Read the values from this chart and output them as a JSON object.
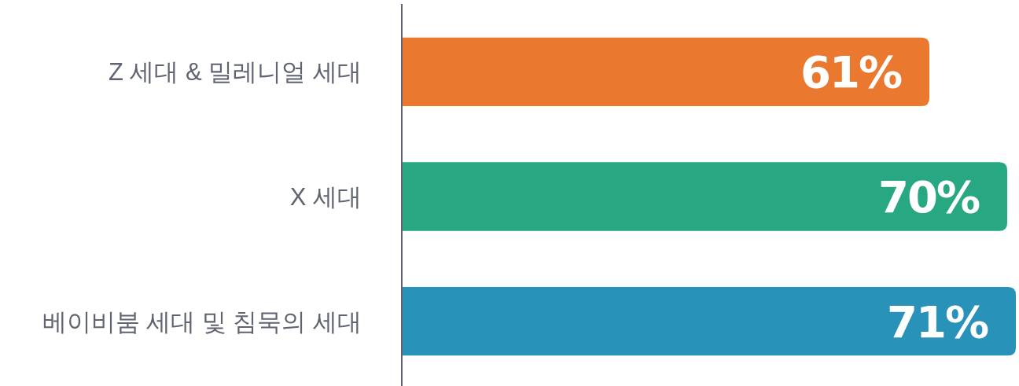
{
  "chart_data": {
    "type": "bar",
    "orientation": "horizontal",
    "categories": [
      "Z 세대 & 밀레니얼 세대",
      "X 세대",
      "베이비붐 세대 및 침묵의 세대"
    ],
    "values": [
      61,
      70,
      71
    ],
    "colors": [
      "#ea782e",
      "#27a882",
      "#2892b8"
    ],
    "value_labels": [
      "61%",
      "70%",
      "71%"
    ]
  }
}
